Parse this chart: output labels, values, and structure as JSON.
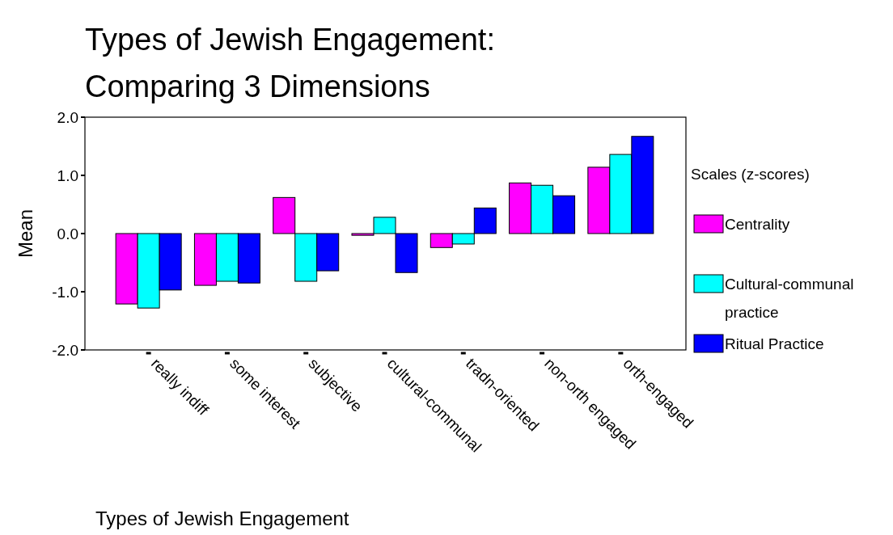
{
  "chart_data": {
    "type": "bar",
    "title": "Types of Jewish Engagement: Comparing 3 Dimensions",
    "xlabel": "Types of Jewish Engagement",
    "ylabel": "Mean",
    "legend_title": "Scales (z-scores)",
    "legend": "right",
    "grid": false,
    "categories": [
      "really indiff",
      "some interest",
      "subjective",
      "cultural-communal",
      "tradn-oriented",
      "non-orth engaged",
      "orth-engaged"
    ],
    "ylim": [
      -2,
      2
    ],
    "yticks": [
      {
        "value": 2,
        "label": "2.0"
      },
      {
        "value": 1,
        "label": "1.0"
      },
      {
        "value": 0,
        "label": "0.0"
      },
      {
        "value": -1,
        "label": "-1.0"
      },
      {
        "value": -2,
        "label": "-2.0"
      }
    ],
    "series": [
      {
        "name": "Centrality",
        "color": "#ff00ff",
        "values": [
          -1.21,
          -0.89,
          0.62,
          -0.03,
          -0.24,
          0.87,
          1.14
        ]
      },
      {
        "name": "Cultural-communal practice",
        "color": "#00ffff",
        "values": [
          -1.28,
          -0.82,
          -0.82,
          0.28,
          -0.18,
          0.83,
          1.36
        ]
      },
      {
        "name": "Ritual Practice",
        "color": "#0000ff",
        "values": [
          -0.97,
          -0.85,
          -0.64,
          -0.67,
          0.44,
          0.65,
          1.67
        ]
      }
    ]
  }
}
